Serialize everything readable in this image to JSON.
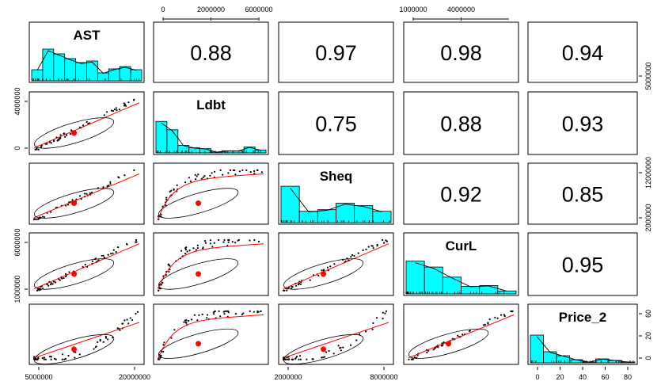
{
  "chart_data": {
    "type": "scatter-matrix",
    "title": "",
    "variables": [
      "AST",
      "Ldbt",
      "Sheq",
      "CurL",
      "Price_2"
    ],
    "correlations": [
      {
        "row": 0,
        "col": 1,
        "value": "0.88"
      },
      {
        "row": 0,
        "col": 2,
        "value": "0.97"
      },
      {
        "row": 0,
        "col": 3,
        "value": "0.98"
      },
      {
        "row": 0,
        "col": 4,
        "value": "0.94"
      },
      {
        "row": 1,
        "col": 2,
        "value": "0.75"
      },
      {
        "row": 1,
        "col": 3,
        "value": "0.88"
      },
      {
        "row": 1,
        "col": 4,
        "value": "0.93"
      },
      {
        "row": 2,
        "col": 3,
        "value": "0.92"
      },
      {
        "row": 2,
        "col": 4,
        "value": "0.85"
      },
      {
        "row": 3,
        "col": 4,
        "value": "0.95"
      }
    ],
    "axes": {
      "top": [
        {
          "col": 1,
          "ticks": [
            "0",
            "2000000",
            "6000000"
          ]
        },
        {
          "col": 3,
          "ticks": [
            "1000000",
            "4000000"
          ]
        }
      ],
      "bottom": [
        {
          "col": 0,
          "ticks": [
            "5000000",
            "20000000"
          ]
        },
        {
          "col": 2,
          "ticks": [
            "2000000",
            "8000000"
          ]
        },
        {
          "col": 4,
          "ticks": [
            "0",
            "20",
            "40",
            "60",
            "80"
          ]
        }
      ],
      "left": [
        {
          "row": 1,
          "ticks": [
            "0",
            "4000000"
          ]
        },
        {
          "row": 3,
          "ticks": [
            "1000000",
            "6000000"
          ]
        }
      ],
      "right": [
        {
          "row": 0,
          "ticks": [
            "5000000"
          ]
        },
        {
          "row": 2,
          "ticks": [
            "2000000",
            "12000000"
          ]
        },
        {
          "row": 4,
          "ticks": [
            "0",
            "20",
            "60"
          ]
        }
      ]
    },
    "histograms": [
      {
        "var": "AST",
        "heights": [
          0.28,
          0.8,
          0.68,
          0.56,
          0.46,
          0.5,
          0.2,
          0.3,
          0.36,
          0.28
        ]
      },
      {
        "var": "Ldbt",
        "heights": [
          0.75,
          0.55,
          0.18,
          0.12,
          0.1,
          0.02,
          0.05,
          0.05,
          0.14,
          0.07
        ]
      },
      {
        "var": "Sheq",
        "heights": [
          0.9,
          0.28,
          0.32,
          0.48,
          0.42,
          0.28
        ]
      },
      {
        "var": "CurL",
        "heights": [
          0.78,
          0.64,
          0.4,
          0.18,
          0.2,
          0.07
        ]
      },
      {
        "var": "Price_2",
        "heights": [
          0.7,
          0.28,
          0.18,
          0.08,
          0.02,
          0.1,
          0.06,
          0.02
        ]
      }
    ],
    "colors": {
      "histogram_fill": "#00ffff",
      "smoother": "#ff0000",
      "center_point": "#ff0000",
      "points": "#000000",
      "ellipse": "#000000"
    },
    "grid": false
  }
}
